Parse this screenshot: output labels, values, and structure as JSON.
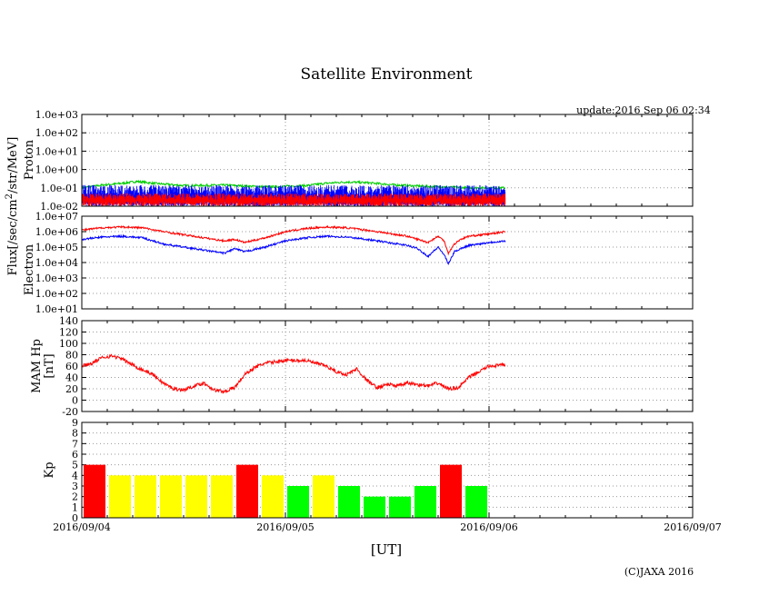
{
  "title": "Satellite Environment",
  "update": "update:2016 Sep 06 02:34",
  "copyright": "(C)JAXA 2016",
  "x_axis": {
    "label": "[UT]",
    "ticks": [
      "2016/09/04",
      "2016/09/05",
      "2016/09/06",
      "2016/09/07"
    ],
    "range_days": [
      0,
      3
    ]
  },
  "flux_label": "Flux[/sec/cm2/str/MeV]",
  "colors": {
    "red": "#ff0000",
    "yellow": "#ffff00",
    "green": "#00ff00",
    "blue": "#0000ff",
    "proton_green": "#00cc00"
  },
  "chart_data": [
    {
      "type": "line",
      "name": "proton",
      "ylabel": "Proton",
      "yscale": "log",
      "ylim_exp": [
        -2,
        3
      ],
      "y_ticks": [
        "1.0e-02",
        "1.0e-01",
        "1.0e+00",
        "1.0e+01",
        "1.0e+02",
        "1.0e+03"
      ],
      "series": [
        {
          "name": "proton-green",
          "color": "#00cc00",
          "x": [
            0,
            0.1,
            0.2,
            0.27,
            0.35,
            0.5,
            0.7,
            0.9,
            1.1,
            1.2,
            1.3,
            1.4,
            1.55,
            1.7,
            1.9,
            2.08
          ],
          "log10": [
            -1.0,
            -0.85,
            -0.75,
            -0.65,
            -0.75,
            -0.88,
            -0.85,
            -0.95,
            -0.88,
            -0.75,
            -0.68,
            -0.72,
            -0.85,
            -0.92,
            -1.0,
            -1.0
          ]
        },
        {
          "name": "proton-blue",
          "color": "#0000ff",
          "x": [
            0,
            2.08
          ],
          "log10": [
            -1.05,
            -1.05
          ],
          "noise": [
            -2.0,
            -0.85
          ]
        },
        {
          "name": "proton-red",
          "color": "#ff0000",
          "x": [
            0,
            2.08
          ],
          "log10": [
            -1.7,
            -1.7
          ],
          "noise": [
            -2.0,
            -1.3
          ]
        }
      ]
    },
    {
      "type": "line",
      "name": "electron",
      "ylabel": "Electron",
      "yscale": "log",
      "ylim_exp": [
        1,
        7
      ],
      "y_ticks": [
        "1.0e+01",
        "1.0e+02",
        "1.0e+03",
        "1.0e+04",
        "1.0e+05",
        "1.0e+06",
        "1.0e+07"
      ],
      "series": [
        {
          "name": "electron-red",
          "color": "#ff0000",
          "x": [
            0,
            0.1,
            0.2,
            0.3,
            0.4,
            0.5,
            0.6,
            0.7,
            0.75,
            0.8,
            0.9,
            1.0,
            1.1,
            1.2,
            1.3,
            1.4,
            1.5,
            1.6,
            1.65,
            1.7,
            1.75,
            1.78,
            1.8,
            1.83,
            1.86,
            1.9,
            2.0,
            2.08
          ],
          "log10": [
            6.1,
            6.25,
            6.3,
            6.25,
            6.0,
            5.8,
            5.6,
            5.4,
            5.5,
            5.3,
            5.6,
            6.0,
            6.2,
            6.3,
            6.25,
            6.1,
            5.9,
            5.7,
            5.5,
            5.3,
            5.7,
            5.4,
            4.6,
            5.2,
            5.5,
            5.7,
            5.85,
            6.0
          ]
        },
        {
          "name": "electron-blue",
          "color": "#0000ff",
          "x": [
            0,
            0.1,
            0.2,
            0.3,
            0.4,
            0.5,
            0.6,
            0.7,
            0.75,
            0.8,
            0.9,
            1.0,
            1.1,
            1.2,
            1.3,
            1.4,
            1.5,
            1.6,
            1.65,
            1.7,
            1.75,
            1.78,
            1.8,
            1.83,
            1.86,
            1.9,
            2.0,
            2.08
          ],
          "log10": [
            5.5,
            5.65,
            5.7,
            5.6,
            5.2,
            5.0,
            4.8,
            4.6,
            4.9,
            4.7,
            5.0,
            5.4,
            5.6,
            5.7,
            5.65,
            5.5,
            5.3,
            5.1,
            4.9,
            4.4,
            5.0,
            4.5,
            3.9,
            4.7,
            4.9,
            5.1,
            5.3,
            5.4
          ]
        }
      ]
    },
    {
      "type": "line",
      "name": "mam-hp",
      "ylabel": "MAM Hp",
      "ylabel2": "[nT]",
      "ylim": [
        -20,
        140
      ],
      "y_ticks": [
        "-20",
        "0",
        "20",
        "40",
        "60",
        "80",
        "100",
        "120",
        "140"
      ],
      "series": [
        {
          "name": "hp",
          "color": "#ff0000",
          "x": [
            0,
            0.05,
            0.1,
            0.15,
            0.2,
            0.27,
            0.35,
            0.4,
            0.45,
            0.5,
            0.55,
            0.6,
            0.65,
            0.7,
            0.75,
            0.8,
            0.85,
            0.9,
            1.0,
            1.1,
            1.2,
            1.25,
            1.3,
            1.35,
            1.4,
            1.45,
            1.5,
            1.55,
            1.6,
            1.7,
            1.75,
            1.8,
            1.85,
            1.9,
            2.0,
            2.08
          ],
          "y": [
            60,
            65,
            75,
            78,
            72,
            58,
            45,
            30,
            20,
            18,
            25,
            30,
            18,
            15,
            22,
            45,
            58,
            65,
            70,
            70,
            60,
            50,
            45,
            55,
            35,
            22,
            28,
            25,
            30,
            25,
            30,
            20,
            22,
            40,
            60,
            62
          ]
        }
      ]
    },
    {
      "type": "bar",
      "name": "kp",
      "ylabel": "Kp",
      "ylim": [
        0,
        9
      ],
      "y_ticks": [
        "0",
        "1",
        "2",
        "3",
        "4",
        "5",
        "6",
        "7",
        "8",
        "9"
      ],
      "bar_width_days": 0.125,
      "values": [
        5,
        4,
        4,
        4,
        4,
        4,
        5,
        4,
        3,
        4,
        3,
        2,
        2,
        3,
        5,
        3
      ],
      "colors": [
        "red",
        "yellow",
        "yellow",
        "yellow",
        "yellow",
        "yellow",
        "red",
        "yellow",
        "green",
        "yellow",
        "green",
        "green",
        "green",
        "green",
        "red",
        "green"
      ]
    }
  ]
}
